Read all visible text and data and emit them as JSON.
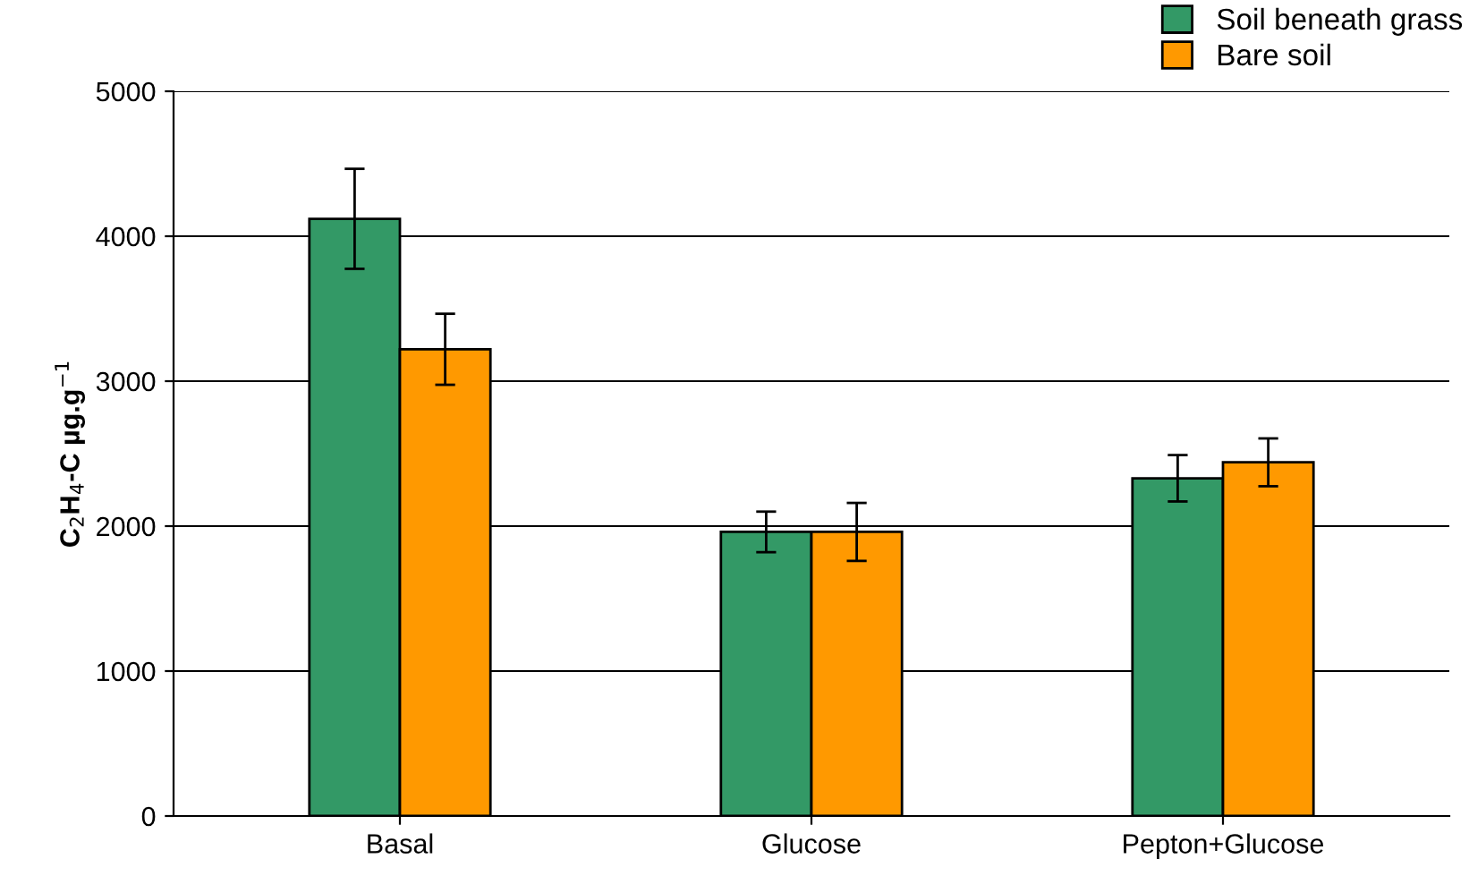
{
  "chart_data": {
    "type": "bar",
    "ylabel": "C$_{2}$H$_{4}$-C µg.g$^{−1}$",
    "categories": [
      "Basal",
      "Glucose",
      "Pepton+Glucose"
    ],
    "series": [
      {
        "name": "Soil beneath grass",
        "color": "#339966",
        "values": [
          4120,
          1960,
          2330
        ],
        "errors": [
          345,
          140,
          160
        ]
      },
      {
        "name": "Bare soil",
        "color": "#ff9900",
        "values": [
          3220,
          1960,
          2440
        ],
        "errors": [
          245,
          200,
          165
        ]
      }
    ],
    "ylim": [
      0,
      5000
    ],
    "yticks": [
      0,
      1000,
      2000,
      3000,
      4000,
      5000
    ],
    "grid": "y",
    "legend": "top right"
  }
}
